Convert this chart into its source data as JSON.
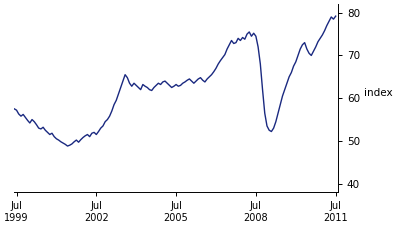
{
  "title": "",
  "ylabel": "index",
  "ylabel_side": "right",
  "xlim": [
    1999.417,
    2011.583
  ],
  "ylim": [
    38,
    82
  ],
  "yticks": [
    40,
    50,
    60,
    70,
    80
  ],
  "xtick_positions": [
    1999.5,
    2002.5,
    2005.5,
    2008.5,
    2011.5
  ],
  "xtick_labels": [
    "Jul\n1999",
    "Jul\n2002",
    "Jul\n2005",
    "Jul\n2008",
    "Jul\n2011"
  ],
  "line_color": "#1a2980",
  "line_width": 1.0,
  "background_color": "#ffffff",
  "data": [
    [
      1999.417,
      57.5
    ],
    [
      1999.5,
      57.2
    ],
    [
      1999.583,
      56.3
    ],
    [
      1999.667,
      55.8
    ],
    [
      1999.75,
      56.2
    ],
    [
      1999.833,
      55.5
    ],
    [
      1999.917,
      54.8
    ],
    [
      2000.0,
      54.2
    ],
    [
      2000.083,
      55.0
    ],
    [
      2000.167,
      54.5
    ],
    [
      2000.25,
      53.8
    ],
    [
      2000.333,
      53.0
    ],
    [
      2000.417,
      52.8
    ],
    [
      2000.5,
      53.2
    ],
    [
      2000.583,
      52.5
    ],
    [
      2000.667,
      52.0
    ],
    [
      2000.75,
      51.5
    ],
    [
      2000.833,
      51.8
    ],
    [
      2000.917,
      51.0
    ],
    [
      2001.0,
      50.5
    ],
    [
      2001.083,
      50.2
    ],
    [
      2001.167,
      49.8
    ],
    [
      2001.25,
      49.5
    ],
    [
      2001.333,
      49.2
    ],
    [
      2001.417,
      48.8
    ],
    [
      2001.5,
      49.0
    ],
    [
      2001.583,
      49.3
    ],
    [
      2001.667,
      49.8
    ],
    [
      2001.75,
      50.2
    ],
    [
      2001.833,
      49.7
    ],
    [
      2001.917,
      50.3
    ],
    [
      2002.0,
      50.8
    ],
    [
      2002.083,
      51.2
    ],
    [
      2002.167,
      51.5
    ],
    [
      2002.25,
      51.0
    ],
    [
      2002.333,
      51.8
    ],
    [
      2002.417,
      52.0
    ],
    [
      2002.5,
      51.5
    ],
    [
      2002.583,
      52.2
    ],
    [
      2002.667,
      53.0
    ],
    [
      2002.75,
      53.5
    ],
    [
      2002.833,
      54.5
    ],
    [
      2002.917,
      55.0
    ],
    [
      2003.0,
      55.8
    ],
    [
      2003.083,
      57.0
    ],
    [
      2003.167,
      58.5
    ],
    [
      2003.25,
      59.5
    ],
    [
      2003.333,
      61.0
    ],
    [
      2003.417,
      62.5
    ],
    [
      2003.5,
      64.0
    ],
    [
      2003.583,
      65.5
    ],
    [
      2003.667,
      64.8
    ],
    [
      2003.75,
      63.5
    ],
    [
      2003.833,
      62.8
    ],
    [
      2003.917,
      63.5
    ],
    [
      2004.0,
      63.0
    ],
    [
      2004.083,
      62.5
    ],
    [
      2004.167,
      62.0
    ],
    [
      2004.25,
      63.2
    ],
    [
      2004.333,
      62.8
    ],
    [
      2004.417,
      62.5
    ],
    [
      2004.5,
      62.0
    ],
    [
      2004.583,
      61.8
    ],
    [
      2004.667,
      62.5
    ],
    [
      2004.75,
      63.0
    ],
    [
      2004.833,
      63.5
    ],
    [
      2004.917,
      63.2
    ],
    [
      2005.0,
      63.8
    ],
    [
      2005.083,
      64.0
    ],
    [
      2005.167,
      63.5
    ],
    [
      2005.25,
      63.0
    ],
    [
      2005.333,
      62.5
    ],
    [
      2005.417,
      62.8
    ],
    [
      2005.5,
      63.2
    ],
    [
      2005.583,
      62.8
    ],
    [
      2005.667,
      63.0
    ],
    [
      2005.75,
      63.5
    ],
    [
      2005.833,
      63.8
    ],
    [
      2005.917,
      64.2
    ],
    [
      2006.0,
      64.5
    ],
    [
      2006.083,
      64.0
    ],
    [
      2006.167,
      63.5
    ],
    [
      2006.25,
      64.0
    ],
    [
      2006.333,
      64.5
    ],
    [
      2006.417,
      64.8
    ],
    [
      2006.5,
      64.2
    ],
    [
      2006.583,
      63.8
    ],
    [
      2006.667,
      64.5
    ],
    [
      2006.75,
      65.0
    ],
    [
      2006.833,
      65.5
    ],
    [
      2006.917,
      66.2
    ],
    [
      2007.0,
      67.0
    ],
    [
      2007.083,
      68.0
    ],
    [
      2007.167,
      68.8
    ],
    [
      2007.25,
      69.5
    ],
    [
      2007.333,
      70.2
    ],
    [
      2007.417,
      71.5
    ],
    [
      2007.5,
      72.5
    ],
    [
      2007.583,
      73.5
    ],
    [
      2007.667,
      72.8
    ],
    [
      2007.75,
      73.0
    ],
    [
      2007.833,
      74.0
    ],
    [
      2007.917,
      73.5
    ],
    [
      2008.0,
      74.2
    ],
    [
      2008.083,
      73.8
    ],
    [
      2008.167,
      75.0
    ],
    [
      2008.25,
      75.5
    ],
    [
      2008.333,
      74.5
    ],
    [
      2008.417,
      75.2
    ],
    [
      2008.5,
      74.5
    ],
    [
      2008.583,
      72.0
    ],
    [
      2008.667,
      68.0
    ],
    [
      2008.75,
      62.0
    ],
    [
      2008.833,
      56.5
    ],
    [
      2008.917,
      53.5
    ],
    [
      2009.0,
      52.5
    ],
    [
      2009.083,
      52.2
    ],
    [
      2009.167,
      53.0
    ],
    [
      2009.25,
      54.5
    ],
    [
      2009.333,
      56.5
    ],
    [
      2009.417,
      58.5
    ],
    [
      2009.5,
      60.5
    ],
    [
      2009.583,
      62.0
    ],
    [
      2009.667,
      63.5
    ],
    [
      2009.75,
      65.0
    ],
    [
      2009.833,
      66.0
    ],
    [
      2009.917,
      67.5
    ],
    [
      2010.0,
      68.5
    ],
    [
      2010.083,
      70.0
    ],
    [
      2010.167,
      71.5
    ],
    [
      2010.25,
      72.5
    ],
    [
      2010.333,
      73.0
    ],
    [
      2010.417,
      71.5
    ],
    [
      2010.5,
      70.5
    ],
    [
      2010.583,
      70.0
    ],
    [
      2010.667,
      71.0
    ],
    [
      2010.75,
      72.0
    ],
    [
      2010.833,
      73.2
    ],
    [
      2010.917,
      74.0
    ],
    [
      2011.0,
      74.8
    ],
    [
      2011.083,
      75.8
    ],
    [
      2011.167,
      77.0
    ],
    [
      2011.25,
      78.0
    ],
    [
      2011.333,
      79.0
    ],
    [
      2011.417,
      78.5
    ],
    [
      2011.5,
      79.2
    ]
  ]
}
